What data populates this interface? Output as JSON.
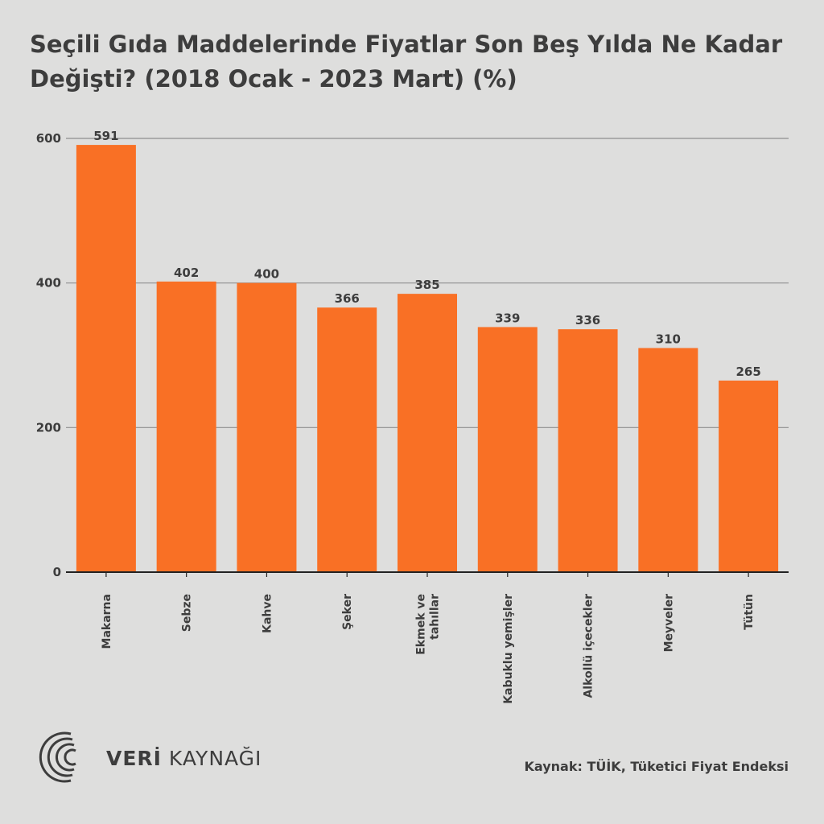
{
  "title": "Seçili Gıda Maddelerinde Fiyatlar Son Beş Yılda Ne Kadar Değişti? (2018 Ocak - 2023 Mart) (%)",
  "source": "Kaynak: TÜİK, Tüketici Fiyat Endeksi",
  "brand": {
    "strong": "VERİ",
    "light": " KAYNAĞI"
  },
  "colors": {
    "bar": "#f97025",
    "grid": "#8f8f8f",
    "axis": "#222222",
    "background": "#dededd"
  },
  "chart_data": {
    "type": "bar",
    "categories": [
      "Makarna",
      "Sebze",
      "Kahve",
      "Şeker",
      "Ekmek ve tahıllar",
      "Kabuklu yemişler",
      "Alkollü içecekler",
      "Meyveler",
      "Tütün"
    ],
    "category_lines": [
      [
        "Makarna"
      ],
      [
        "Sebze"
      ],
      [
        "Kahve"
      ],
      [
        "Şeker"
      ],
      [
        "Ekmek ve",
        "tahıllar"
      ],
      [
        "Kabuklu yemişler"
      ],
      [
        "Alkollü içecekler"
      ],
      [
        "Meyveler"
      ],
      [
        "Tütün"
      ]
    ],
    "values": [
      591,
      402,
      400,
      366,
      385,
      339,
      336,
      310,
      265
    ],
    "title": "Seçili Gıda Maddelerinde Fiyatlar Son Beş Yılda Ne Kadar Değişti? (2018 Ocak - 2023 Mart) (%)",
    "xlabel": "",
    "ylabel": "",
    "ylim": [
      0,
      600
    ],
    "yticks": [
      0,
      200,
      400,
      600
    ],
    "grid": true,
    "legend": "none"
  }
}
